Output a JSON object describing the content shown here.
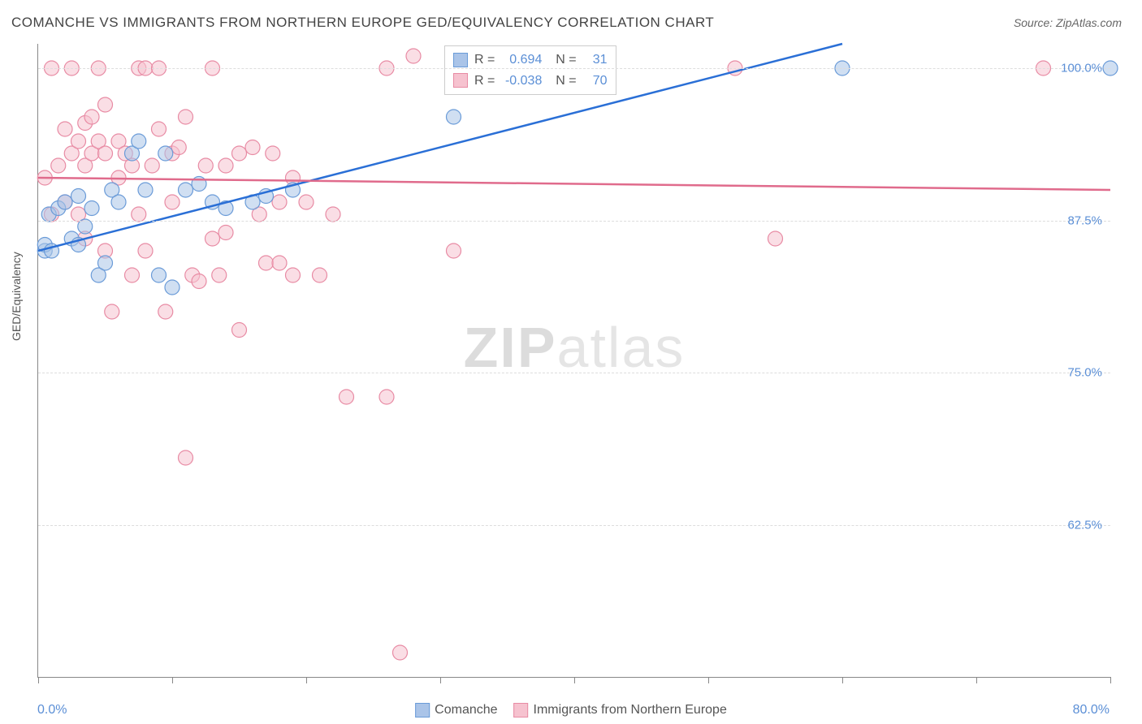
{
  "title": "COMANCHE VS IMMIGRANTS FROM NORTHERN EUROPE GED/EQUIVALENCY CORRELATION CHART",
  "source": "Source: ZipAtlas.com",
  "ylabel": "GED/Equivalency",
  "watermark_a": "ZIP",
  "watermark_b": "atlas",
  "chart": {
    "type": "scatter",
    "xlim": [
      0,
      80
    ],
    "ylim": [
      50,
      102
    ],
    "yticks": [
      {
        "v": 62.5,
        "label": "62.5%"
      },
      {
        "v": 75.0,
        "label": "75.0%"
      },
      {
        "v": 87.5,
        "label": "87.5%"
      },
      {
        "v": 100.0,
        "label": "100.0%"
      }
    ],
    "xticks": [
      0,
      10,
      20,
      30,
      40,
      50,
      60,
      70,
      80
    ],
    "xlabel_min": "0.0%",
    "xlabel_max": "80.0%",
    "background": "#ffffff",
    "grid_color": "#dddddd",
    "series": [
      {
        "name": "Comanche",
        "color_fill": "#aac4e8",
        "color_stroke": "#6a9bd8",
        "line_color": "#2a6fd6",
        "marker_r": 9,
        "stats": {
          "R": "0.694",
          "N": "31"
        },
        "trend": {
          "x1": 0,
          "y1": 85,
          "x2": 60,
          "y2": 102
        },
        "points": [
          [
            0.5,
            85
          ],
          [
            0.5,
            85.5
          ],
          [
            0.8,
            88
          ],
          [
            1.5,
            88.5
          ],
          [
            1,
            85
          ],
          [
            2,
            89
          ],
          [
            2.5,
            86
          ],
          [
            3,
            89.5
          ],
          [
            3,
            85.5
          ],
          [
            3.5,
            87
          ],
          [
            4,
            88.5
          ],
          [
            4.5,
            83
          ],
          [
            5,
            84
          ],
          [
            5.5,
            90
          ],
          [
            6,
            89
          ],
          [
            7,
            93
          ],
          [
            7.5,
            94
          ],
          [
            8,
            90
          ],
          [
            9,
            83
          ],
          [
            9.5,
            93
          ],
          [
            10,
            82
          ],
          [
            11,
            90
          ],
          [
            12,
            90.5
          ],
          [
            13,
            89
          ],
          [
            14,
            88.5
          ],
          [
            16,
            89
          ],
          [
            17,
            89.5
          ],
          [
            19,
            90
          ],
          [
            31,
            96
          ],
          [
            60,
            100
          ],
          [
            80,
            100
          ]
        ]
      },
      {
        "name": "Immigrants from Northern Europe",
        "color_fill": "#f6c2cf",
        "color_stroke": "#e88ba4",
        "line_color": "#e06b8c",
        "marker_r": 9,
        "stats": {
          "R": "-0.038",
          "N": "70"
        },
        "trend": {
          "x1": 0,
          "y1": 91,
          "x2": 80,
          "y2": 90
        },
        "points": [
          [
            0.5,
            91
          ],
          [
            1,
            88
          ],
          [
            1,
            100
          ],
          [
            1.5,
            92
          ],
          [
            2,
            95
          ],
          [
            2,
            89
          ],
          [
            2.5,
            100
          ],
          [
            2.5,
            93
          ],
          [
            3,
            94
          ],
          [
            3,
            88
          ],
          [
            3.5,
            92
          ],
          [
            3.5,
            95.5
          ],
          [
            3.5,
            86
          ],
          [
            4,
            93
          ],
          [
            4,
            96
          ],
          [
            4.5,
            100
          ],
          [
            4.5,
            94
          ],
          [
            5,
            93
          ],
          [
            5,
            97
          ],
          [
            5,
            85
          ],
          [
            5.5,
            80
          ],
          [
            6,
            94
          ],
          [
            6,
            91
          ],
          [
            6.5,
            93
          ],
          [
            7,
            92
          ],
          [
            7,
            83
          ],
          [
            7.5,
            100
          ],
          [
            7.5,
            88
          ],
          [
            8,
            85
          ],
          [
            8,
            100
          ],
          [
            8.5,
            92
          ],
          [
            9,
            95
          ],
          [
            9,
            100
          ],
          [
            9.5,
            80
          ],
          [
            10,
            93
          ],
          [
            10,
            89
          ],
          [
            10.5,
            93.5
          ],
          [
            11,
            96
          ],
          [
            11,
            68
          ],
          [
            11.5,
            83
          ],
          [
            12,
            82.5
          ],
          [
            12.5,
            92
          ],
          [
            13,
            100
          ],
          [
            13,
            86
          ],
          [
            13.5,
            83
          ],
          [
            14,
            92
          ],
          [
            14,
            86.5
          ],
          [
            15,
            78.5
          ],
          [
            15,
            93
          ],
          [
            16,
            93.5
          ],
          [
            16.5,
            88
          ],
          [
            17,
            84
          ],
          [
            17.5,
            93
          ],
          [
            18,
            89
          ],
          [
            18,
            84
          ],
          [
            19,
            91
          ],
          [
            19,
            83
          ],
          [
            20,
            89
          ],
          [
            21,
            83
          ],
          [
            22,
            88
          ],
          [
            23,
            73
          ],
          [
            26,
            73
          ],
          [
            26,
            100
          ],
          [
            27,
            52
          ],
          [
            28,
            101
          ],
          [
            31,
            85
          ],
          [
            40,
            100
          ],
          [
            52,
            100
          ],
          [
            55,
            86
          ],
          [
            75,
            100
          ]
        ]
      }
    ],
    "legend_bottom": [
      {
        "label": "Comanche",
        "fill": "#aac4e8",
        "stroke": "#6a9bd8"
      },
      {
        "label": "Immigrants from Northern Europe",
        "fill": "#f6c2cf",
        "stroke": "#e88ba4"
      }
    ]
  }
}
